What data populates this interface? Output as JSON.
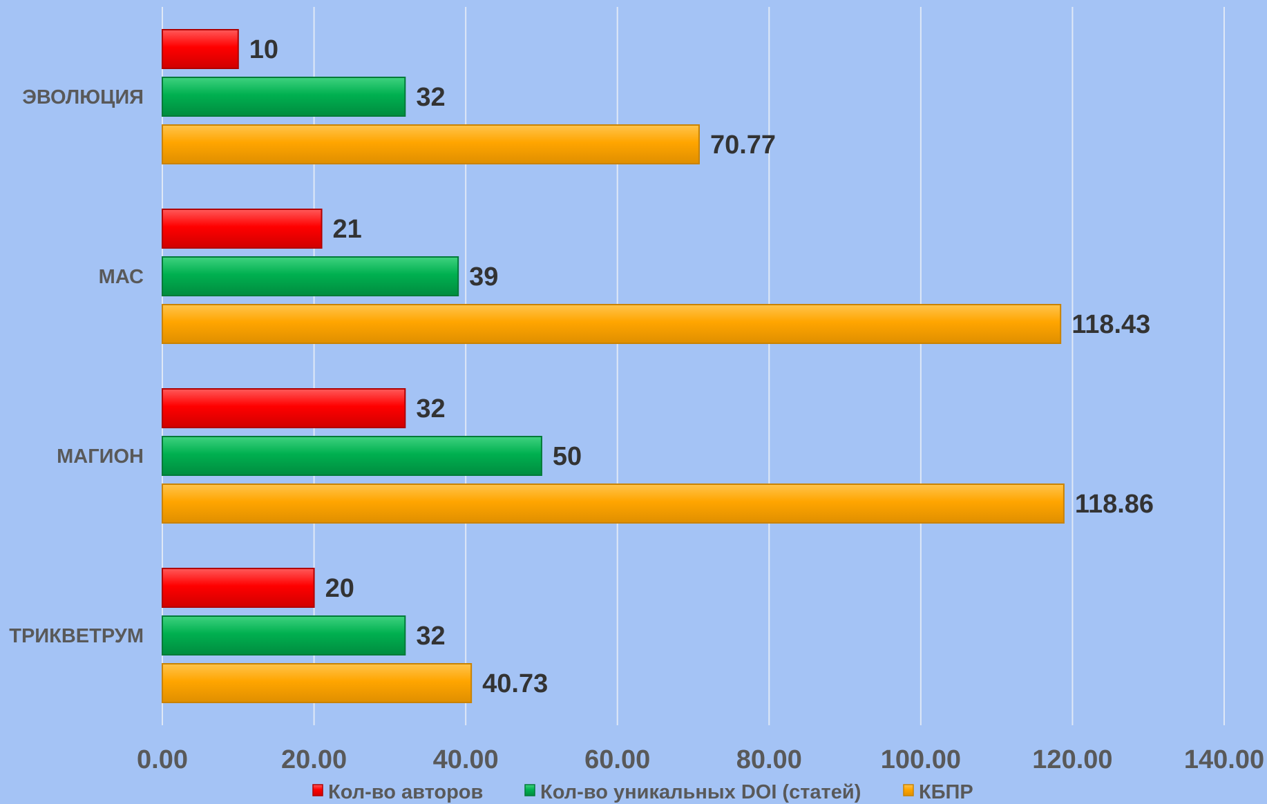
{
  "chart_data": {
    "type": "bar",
    "orientation": "horizontal",
    "categories": [
      "ЭВОЛЮЦИЯ",
      "МАС",
      "МАГИОН",
      "ТРИКВЕТРУМ"
    ],
    "series": [
      {
        "name": "Кол-во авторов",
        "color": "#ff0000",
        "values": [
          10,
          21,
          32,
          20
        ],
        "labels": [
          "10",
          "21",
          "32",
          "20"
        ]
      },
      {
        "name": "Кол-во уникальных DOI (статей)",
        "color": "#00b050",
        "values": [
          32,
          39,
          50,
          32
        ],
        "labels": [
          "32",
          "39",
          "50",
          "32"
        ]
      },
      {
        "name": "КБПР",
        "color": "#ffa500",
        "values": [
          70.77,
          118.43,
          118.86,
          40.73
        ],
        "labels": [
          "70.77",
          "118.43",
          "118.86",
          "40.73"
        ]
      }
    ],
    "xlim": [
      0,
      140
    ],
    "xticks": [
      0,
      20,
      40,
      60,
      80,
      100,
      120,
      140
    ],
    "xtick_labels": [
      "0.00",
      "20.00",
      "40.00",
      "60.00",
      "80.00",
      "100.00",
      "120.00",
      "140.00"
    ],
    "grid": true,
    "legend_position": "bottom",
    "title": "",
    "xlabel": "",
    "ylabel": ""
  }
}
